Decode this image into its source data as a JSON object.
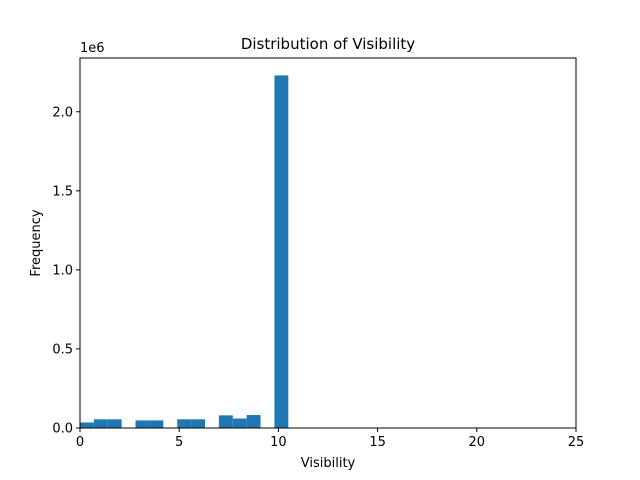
{
  "chart_data": {
    "type": "bar",
    "title": "Distribution of Visibility",
    "xlabel": "Visibility",
    "ylabel": "Frequency",
    "y_offset_label": "1e6",
    "xlim": [
      0,
      25
    ],
    "ylim": [
      0,
      2340000
    ],
    "xticks": [
      0,
      5,
      10,
      15,
      20,
      25
    ],
    "xtick_labels": [
      "0",
      "5",
      "10",
      "15",
      "20",
      "25"
    ],
    "yticks": [
      0,
      500000,
      1000000,
      1500000,
      2000000
    ],
    "ytick_labels": [
      "0.0",
      "0.5",
      "1.0",
      "1.5",
      "2.0"
    ],
    "grid": false,
    "bar_color": "#1f77b4",
    "bins": [
      {
        "x0": 0.0,
        "x1": 0.7,
        "value": 35000
      },
      {
        "x0": 0.7,
        "x1": 1.4,
        "value": 55000
      },
      {
        "x0": 1.4,
        "x1": 2.1,
        "value": 55000
      },
      {
        "x0": 2.8,
        "x1": 3.5,
        "value": 48000
      },
      {
        "x0": 3.5,
        "x1": 4.2,
        "value": 48000
      },
      {
        "x0": 4.9,
        "x1": 5.6,
        "value": 55000
      },
      {
        "x0": 5.6,
        "x1": 6.3,
        "value": 55000
      },
      {
        "x0": 7.0,
        "x1": 7.7,
        "value": 80000
      },
      {
        "x0": 7.7,
        "x1": 8.4,
        "value": 60000
      },
      {
        "x0": 8.4,
        "x1": 9.1,
        "value": 82000
      },
      {
        "x0": 9.8,
        "x1": 10.5,
        "value": 2230000
      }
    ]
  }
}
